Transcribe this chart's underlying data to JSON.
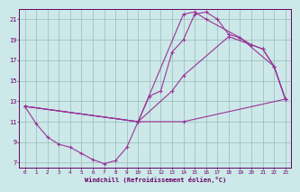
{
  "background_color": "#cce8e8",
  "grid_color": "#99bbbb",
  "line_color": "#993399",
  "xlabel": "Windchill (Refroidissement éolien,°C)",
  "xlim": [
    -0.5,
    23.5
  ],
  "ylim": [
    6.5,
    22.0
  ],
  "yticks": [
    7,
    9,
    11,
    13,
    15,
    17,
    19,
    21
  ],
  "xticks": [
    0,
    1,
    2,
    3,
    4,
    5,
    6,
    7,
    8,
    9,
    10,
    11,
    12,
    13,
    14,
    15,
    16,
    17,
    18,
    19,
    20,
    21,
    22,
    23
  ],
  "curve1_x": [
    0,
    1,
    2,
    3,
    4,
    5,
    6,
    7,
    8,
    9,
    10,
    11,
    12,
    13,
    14,
    15,
    16,
    17,
    18,
    19,
    20,
    21,
    22,
    23
  ],
  "curve1_y": [
    12.5,
    10.8,
    9.5,
    8.8,
    8.5,
    7.9,
    7.3,
    6.9,
    7.2,
    8.5,
    11.0,
    13.5,
    14.0,
    17.8,
    19.0,
    21.5,
    21.7,
    21.0,
    19.5,
    19.2,
    18.5,
    18.1,
    16.4,
    13.2
  ],
  "curve2_x": [
    0,
    10,
    14,
    15,
    16,
    19,
    22,
    23
  ],
  "curve2_y": [
    12.5,
    11.0,
    21.5,
    21.7,
    21.0,
    19.2,
    16.4,
    13.2
  ],
  "curve3_x": [
    0,
    10,
    13,
    14,
    18,
    20,
    21,
    22,
    23
  ],
  "curve3_y": [
    12.5,
    11.0,
    14.0,
    15.5,
    19.3,
    18.5,
    18.1,
    16.4,
    13.2
  ],
  "curve4_x": [
    0,
    10,
    14,
    23
  ],
  "curve4_y": [
    12.5,
    11.0,
    11.0,
    13.2
  ]
}
